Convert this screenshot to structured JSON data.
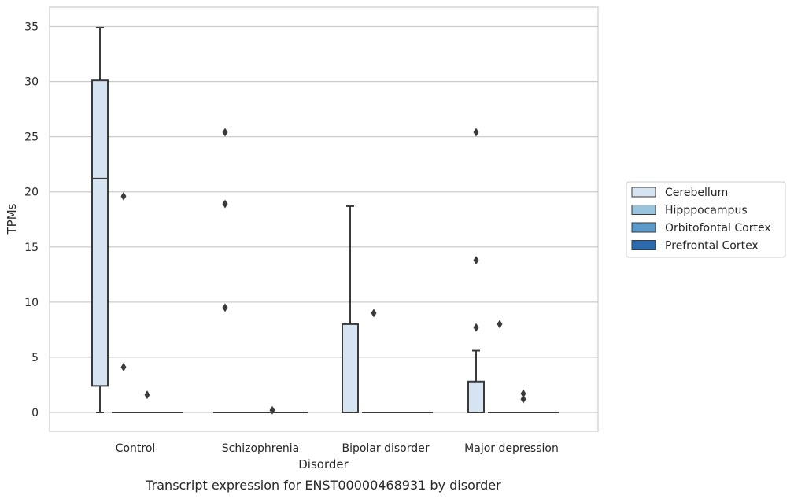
{
  "chart_data": {
    "type": "box",
    "title": "",
    "caption": "Transcript expression for ENST00000468931 by disorder",
    "xlabel": "Disorder",
    "ylabel": "TPMs",
    "ylim": [
      -1.7,
      36.5
    ],
    "yticks": [
      "0",
      "5",
      "10",
      "15",
      "20",
      "25",
      "30",
      "35"
    ],
    "grid": "horizontal",
    "legend_position": "right",
    "categories": [
      "Control",
      "Schizophrenia",
      "Bipolar disorder",
      "Major depression"
    ],
    "series": [
      {
        "name": "Cerebellum",
        "color": "#d6e4f1",
        "boxes": [
          {
            "q1": 2.4,
            "median": 21.2,
            "q3": 30.1,
            "whisker_low": 0,
            "whisker_high": 34.9,
            "outliers": []
          },
          {
            "q1": 0,
            "median": 0,
            "q3": 0,
            "whisker_low": 0,
            "whisker_high": 0,
            "outliers": [
              9.5,
              18.9,
              25.4
            ]
          },
          {
            "q1": 0,
            "median": 0,
            "q3": 8.0,
            "whisker_low": 0,
            "whisker_high": 18.7,
            "outliers": []
          },
          {
            "q1": 0,
            "median": 0,
            "q3": 2.8,
            "whisker_low": 0,
            "whisker_high": 5.6,
            "outliers": [
              7.7,
              13.8,
              25.4
            ]
          }
        ]
      },
      {
        "name": "Hipppocampus",
        "color": "#9ac3dc",
        "boxes": [
          {
            "q1": 0,
            "median": 0,
            "q3": 0,
            "whisker_low": 0,
            "whisker_high": 0,
            "outliers": [
              4.1,
              19.6
            ]
          },
          {
            "q1": 0,
            "median": 0,
            "q3": 0,
            "whisker_low": 0,
            "whisker_high": 0,
            "outliers": []
          },
          {
            "q1": 0,
            "median": 0,
            "q3": 0,
            "whisker_low": 0,
            "whisker_high": 0,
            "outliers": [
              9.0
            ]
          },
          {
            "q1": 0,
            "median": 0,
            "q3": 0,
            "whisker_low": 0,
            "whisker_high": 0,
            "outliers": [
              8.0
            ]
          }
        ]
      },
      {
        "name": "Orbitofontal Cortex",
        "color": "#5b9ac9",
        "boxes": [
          {
            "q1": 0,
            "median": 0,
            "q3": 0,
            "whisker_low": 0,
            "whisker_high": 0,
            "outliers": [
              1.6
            ]
          },
          {
            "q1": 0,
            "median": 0,
            "q3": 0,
            "whisker_low": 0,
            "whisker_high": 0,
            "outliers": [
              0.2
            ]
          },
          {
            "q1": 0,
            "median": 0,
            "q3": 0,
            "whisker_low": 0,
            "whisker_high": 0,
            "outliers": []
          },
          {
            "q1": 0,
            "median": 0,
            "q3": 0,
            "whisker_low": 0,
            "whisker_high": 0,
            "outliers": [
              1.2,
              1.7
            ]
          }
        ]
      },
      {
        "name": "Prefrontal Cortex",
        "color": "#2a6aad",
        "boxes": [
          {
            "q1": 0,
            "median": 0,
            "q3": 0,
            "whisker_low": 0,
            "whisker_high": 0,
            "outliers": []
          },
          {
            "q1": 0,
            "median": 0,
            "q3": 0,
            "whisker_low": 0,
            "whisker_high": 0,
            "outliers": []
          },
          {
            "q1": 0,
            "median": 0,
            "q3": 0,
            "whisker_low": 0,
            "whisker_high": 0,
            "outliers": []
          },
          {
            "q1": 0,
            "median": 0,
            "q3": 0,
            "whisker_low": 0,
            "whisker_high": 0,
            "outliers": []
          }
        ]
      }
    ]
  }
}
